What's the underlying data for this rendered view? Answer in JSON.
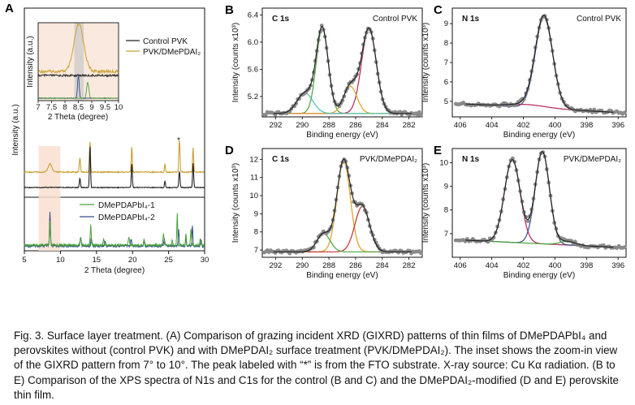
{
  "panels": {
    "A": {
      "letter": "A",
      "xlabel": "2 Theta (degree)",
      "ylabel": "Intensity (a.u.)",
      "x_ticks": [
        "5",
        "10",
        "15",
        "20",
        "25",
        "30"
      ],
      "legend": [
        "Control PVK",
        "PVK/DMePDAI₂"
      ],
      "legend_bottom": [
        "DMePDAPbI₄-1",
        "DMePDAPbI₄-2"
      ],
      "star": "*",
      "inset": {
        "xlabel": "2 Theta (degree)",
        "ylabel": "Intensity (a.u.)",
        "x_ticks": [
          "7",
          "7.5",
          "8",
          "8.5",
          "9",
          "9.5",
          "10"
        ]
      }
    },
    "B": {
      "letter": "B",
      "element": "C 1s",
      "sample": "Control PVK",
      "xlabel": "Binding energy (eV)",
      "ylabel": "Intensity (counts x10³)",
      "x_ticks": [
        "292",
        "290",
        "288",
        "286",
        "284",
        "282"
      ],
      "y_ticks": [
        "5.2",
        "5.6",
        "6.0",
        "6.4"
      ]
    },
    "C": {
      "letter": "C",
      "element": "N 1s",
      "sample": "Control PVK",
      "xlabel": "Binding energy (eV)",
      "ylabel": "Intensity (counts x10³)",
      "x_ticks": [
        "406",
        "404",
        "402",
        "400",
        "398",
        "396"
      ],
      "y_ticks": [
        "5",
        "6",
        "7",
        "8",
        "9"
      ]
    },
    "D": {
      "letter": "D",
      "element": "C 1s",
      "sample": "PVK/DMePDAI₂",
      "xlabel": "Binding energy (eV)",
      "ylabel": "Intensity (counts x10³)",
      "x_ticks": [
        "292",
        "290",
        "288",
        "286",
        "284",
        "282"
      ],
      "y_ticks": [
        "7",
        "8",
        "9",
        "10",
        "11",
        "12"
      ]
    },
    "E": {
      "letter": "E",
      "element": "N 1s",
      "sample": "PVK/DMePDAI₂",
      "xlabel": "Binding energy (eV)",
      "ylabel": "Intensity (counts x10³)",
      "x_ticks": [
        "406",
        "404",
        "402",
        "400",
        "398",
        "396"
      ],
      "y_ticks": [
        "7",
        "8",
        "9",
        "10"
      ]
    }
  },
  "colors": {
    "control": "#222222",
    "pvk": "#c9a030",
    "green": "#4aa33a",
    "blue": "#324a8c",
    "magenta": "#b5245a",
    "orange": "#e0a020",
    "teal": "#4cc0b0",
    "red": "#c03030",
    "points": "#8a8a8a",
    "highlight": "#f8dfd0"
  },
  "caption": {
    "lead": "Fig. 3. Surface layer treatment.",
    "body": " (A) Comparison of grazing incident XRD (GIXRD) patterns of thin films of DMePDAPbI₄ and perovskites without (control PVK) and with DMePDAI₂ surface treatment (PVK/DMePDAI₂). The inset shows the zoom-in view of the GIXRD pattern from 7° to 10°. The peak labeled with “*” is from the FTO substrate. X-ray source: Cu Kα radiation. (B to E) Comparison of the XPS spectra of N1s and C1s for the control (B and C) and the DMePDAI₂-modified (D and E) perovskite thin film."
  }
}
